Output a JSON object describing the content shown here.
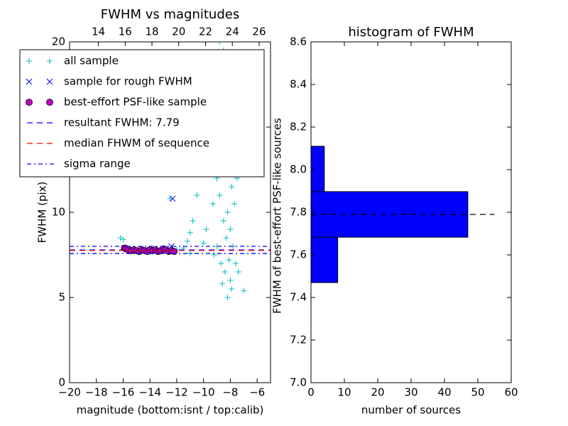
{
  "chart_data": [
    {
      "type": "scatter",
      "title": "FWHM vs magnitudes",
      "xlabel": "magnitude (bottom:isnt / top:calib)",
      "ylabel": "FWHM (pix)",
      "xlim": [
        -20,
        -5
      ],
      "xticks": [
        {
          "value": -20,
          "label": "−20"
        },
        {
          "value": -18,
          "label": "−18"
        },
        {
          "value": -16,
          "label": "−16"
        },
        {
          "value": -14,
          "label": "−14"
        },
        {
          "value": -12,
          "label": "−12"
        },
        {
          "value": -10,
          "label": "−10"
        },
        {
          "value": -8,
          "label": "−8"
        },
        {
          "value": -6,
          "label": "−6"
        }
      ],
      "x2lim": [
        11.85,
        26.85
      ],
      "x2ticks": [
        14,
        16,
        18,
        20,
        22,
        24,
        26
      ],
      "ylim": [
        0,
        20
      ],
      "yticks": [
        0,
        5,
        10,
        15,
        20
      ],
      "legend": "upper left",
      "series": [
        {
          "name": "all sample",
          "color": "#00bfbf",
          "marker": "+",
          "x": [
            -16.2,
            -16.0,
            -15.8,
            -15.5,
            -15.0,
            -14.5,
            -14.0,
            -13.5,
            -13.0,
            -12.5,
            -12.0,
            -11.5,
            -11.2,
            -11.0,
            -10.8,
            -10.5,
            -10.2,
            -10.0,
            -9.8,
            -9.6,
            -9.5,
            -9.3,
            -9.2,
            -9.0,
            -9.0,
            -8.9,
            -8.8,
            -8.7,
            -8.6,
            -8.5,
            -8.5,
            -8.4,
            -8.3,
            -8.3,
            -8.2,
            -8.2,
            -8.1,
            -8.1,
            -8.0,
            -8.0,
            -8.0,
            -7.9,
            -7.9,
            -7.8,
            -7.8,
            -7.7,
            -7.6,
            -7.5,
            -7.4,
            -7.0,
            -8.2,
            -8.6,
            -11.0,
            -12.5,
            -8.8
          ],
          "values": [
            8.5,
            8.4,
            7.9,
            7.8,
            7.7,
            7.8,
            7.7,
            7.8,
            7.9,
            7.7,
            7.8,
            7.9,
            8.3,
            8.8,
            9.5,
            11.0,
            12.5,
            8.2,
            9.0,
            13.0,
            14.5,
            10.5,
            7.5,
            12.0,
            8.0,
            16.0,
            11.0,
            7.0,
            14.0,
            19.5,
            9.5,
            6.5,
            13.0,
            8.5,
            15.5,
            10.0,
            7.2,
            12.5,
            9.0,
            17.0,
            6.0,
            11.5,
            5.5,
            14.0,
            8.0,
            10.5,
            7.0,
            12.0,
            6.5,
            5.4,
            5.0,
            5.8,
            7.6,
            10.8,
            20.0
          ]
        },
        {
          "name": "sample for rough FWHM",
          "color": "#0000ff",
          "marker": "x",
          "x": [
            -12.3,
            -12.4,
            -15.9,
            -14.0,
            -13.0
          ],
          "values": [
            10.8,
            8.0,
            7.9,
            7.8,
            7.8
          ]
        },
        {
          "name": "best-effort PSF-like sample",
          "color": "#bf00bf",
          "marker": "o",
          "x": [
            -15.9,
            -15.8,
            -15.6,
            -15.4,
            -15.2,
            -15.0,
            -14.8,
            -14.6,
            -14.4,
            -14.2,
            -14.0,
            -13.8,
            -13.6,
            -13.4,
            -13.2,
            -13.0,
            -12.8,
            -12.6,
            -12.4,
            -12.2
          ],
          "values": [
            7.9,
            7.85,
            7.8,
            7.75,
            7.8,
            7.75,
            7.7,
            7.8,
            7.75,
            7.7,
            7.8,
            7.75,
            7.8,
            7.7,
            7.75,
            7.85,
            7.8,
            7.7,
            7.75,
            7.7
          ]
        }
      ],
      "lines": [
        {
          "name": "resultant FWHM: 7.79",
          "color": "#0000ff",
          "style": "dashed",
          "values": [
            7.79
          ]
        },
        {
          "name": "median FHWM of sequence",
          "color": "#ff0000",
          "style": "dashed",
          "values": [
            7.76
          ]
        },
        {
          "name": "sigma range",
          "color": "#0000ff",
          "style": "dashdot",
          "values": [
            7.58,
            8.0
          ]
        }
      ]
    },
    {
      "type": "histogram",
      "title": "histogram of FWHM",
      "xlabel": "number of sources",
      "ylabel": "FWHM of best-effort PSF-like sources",
      "orientation": "horizontal",
      "bins": [
        7.47,
        7.683,
        7.897,
        8.11
      ],
      "values": [
        8,
        47,
        4
      ],
      "color": "#0000ff",
      "xlim": [
        0,
        60
      ],
      "xticks": [
        0,
        10,
        20,
        30,
        40,
        50,
        60
      ],
      "ylim": [
        7.0,
        8.6
      ],
      "yticks": [
        {
          "value": 7.0,
          "label": "7.0"
        },
        7.2,
        7.4,
        7.6,
        7.8,
        {
          "value": 8.0,
          "label": "8.0"
        },
        8.2,
        8.4,
        8.6
      ],
      "reference_line": {
        "y": 7.79,
        "x": [
          0,
          55
        ]
      }
    }
  ]
}
